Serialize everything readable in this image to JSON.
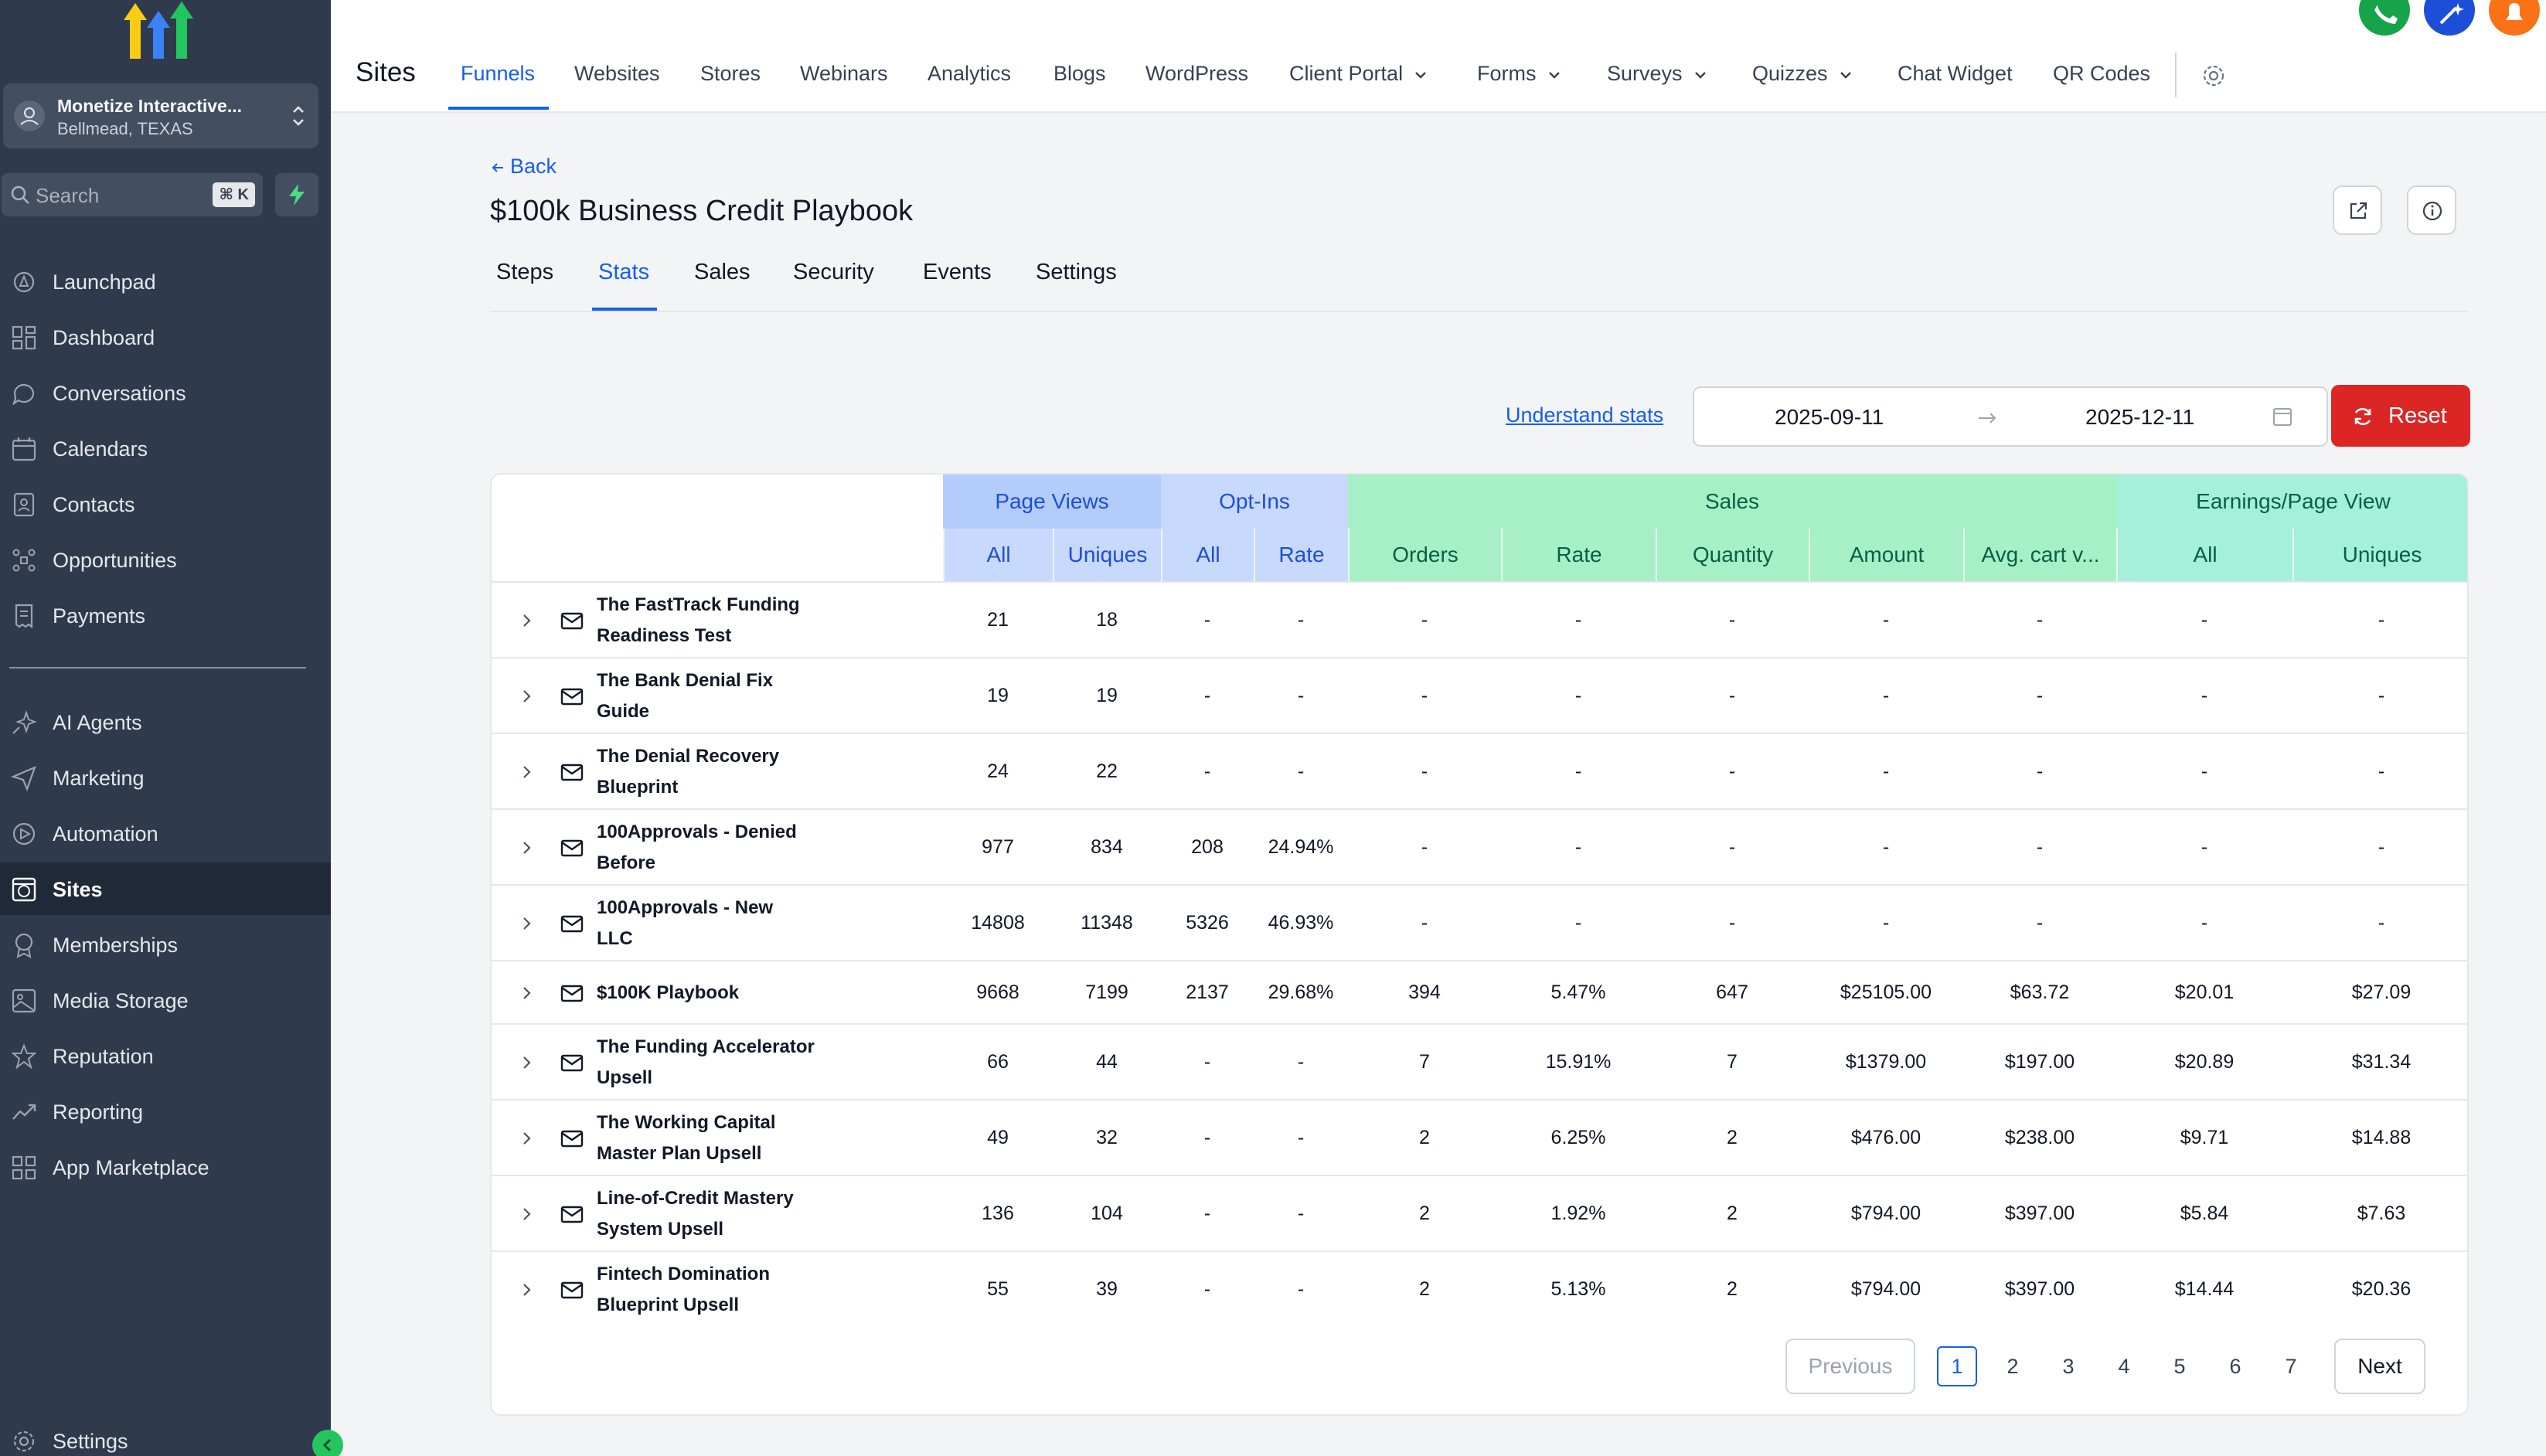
{
  "sidebar": {
    "account": {
      "name": "Monetize Interactive...",
      "location": "Bellmead, TEXAS"
    },
    "search": {
      "placeholder": "Search",
      "shortcut": "⌘ K"
    },
    "items": [
      {
        "label": "Launchpad",
        "icon": "rocket-icon"
      },
      {
        "label": "Dashboard",
        "icon": "grid-icon"
      },
      {
        "label": "Conversations",
        "icon": "chat-icon"
      },
      {
        "label": "Calendars",
        "icon": "calendar-icon"
      },
      {
        "label": "Contacts",
        "icon": "contacts-icon"
      },
      {
        "label": "Opportunities",
        "icon": "pipeline-icon"
      },
      {
        "label": "Payments",
        "icon": "receipt-icon"
      },
      {
        "label": "AI Agents",
        "icon": "sparkle-icon"
      },
      {
        "label": "Marketing",
        "icon": "send-icon"
      },
      {
        "label": "Automation",
        "icon": "automation-icon"
      },
      {
        "label": "Sites",
        "icon": "globe-icon"
      },
      {
        "label": "Memberships",
        "icon": "badge-icon"
      },
      {
        "label": "Media Storage",
        "icon": "image-icon"
      },
      {
        "label": "Reputation",
        "icon": "star-icon"
      },
      {
        "label": "Reporting",
        "icon": "trend-icon"
      },
      {
        "label": "App Marketplace",
        "icon": "apps-icon"
      }
    ],
    "settings_label": "Settings"
  },
  "topbar": {
    "title": "Sites",
    "tabs": [
      "Funnels",
      "Websites",
      "Stores",
      "Webinars",
      "Analytics",
      "Blogs",
      "WordPress",
      "Client Portal",
      "Forms",
      "Surveys",
      "Quizzes",
      "Chat Widget",
      "QR Codes"
    ]
  },
  "page": {
    "back_label": "Back",
    "title": "$100k Business Credit Playbook",
    "tabs": [
      "Steps",
      "Stats",
      "Sales",
      "Security",
      "Events",
      "Settings"
    ]
  },
  "filters": {
    "understand_label": "Understand stats",
    "start_date": "2025-09-11",
    "end_date": "2025-12-11",
    "reset_label": "Reset"
  },
  "table": {
    "groups": [
      "Page Views",
      "Opt-Ins",
      "Sales",
      "Earnings/Page View"
    ],
    "columns": [
      "All",
      "Uniques",
      "All",
      "Rate",
      "Orders",
      "Rate",
      "Quantity",
      "Amount",
      "Avg. cart v...",
      "All",
      "Uniques"
    ],
    "rows": [
      {
        "line1": "The FastTrack Funding",
        "line2": "Readiness Test",
        "values": [
          "21",
          "18",
          "-",
          "-",
          "-",
          "-",
          "-",
          "-",
          "-",
          "-",
          "-"
        ]
      },
      {
        "line1": "The Bank Denial Fix",
        "line2": "Guide",
        "values": [
          "19",
          "19",
          "-",
          "-",
          "-",
          "-",
          "-",
          "-",
          "-",
          "-",
          "-"
        ]
      },
      {
        "line1": "The Denial Recovery",
        "line2": "Blueprint",
        "values": [
          "24",
          "22",
          "-",
          "-",
          "-",
          "-",
          "-",
          "-",
          "-",
          "-",
          "-"
        ]
      },
      {
        "line1": "100Approvals - Denied",
        "line2": "Before",
        "values": [
          "977",
          "834",
          "208",
          "24.94%",
          "-",
          "-",
          "-",
          "-",
          "-",
          "-",
          "-"
        ]
      },
      {
        "line1": "100Approvals - New",
        "line2": "LLC",
        "values": [
          "14808",
          "11348",
          "5326",
          "46.93%",
          "-",
          "-",
          "-",
          "-",
          "-",
          "-",
          "-"
        ]
      },
      {
        "line1": "$100K Playbook",
        "line2": "",
        "values": [
          "9668",
          "7199",
          "2137",
          "29.68%",
          "394",
          "5.47%",
          "647",
          "$25105.00",
          "$63.72",
          "$20.01",
          "$27.09"
        ]
      },
      {
        "line1": "The Funding Accelerator",
        "line2": "Upsell",
        "values": [
          "66",
          "44",
          "-",
          "-",
          "7",
          "15.91%",
          "7",
          "$1379.00",
          "$197.00",
          "$20.89",
          "$31.34"
        ]
      },
      {
        "line1": "The Working Capital",
        "line2": "Master Plan Upsell",
        "values": [
          "49",
          "32",
          "-",
          "-",
          "2",
          "6.25%",
          "2",
          "$476.00",
          "$238.00",
          "$9.71",
          "$14.88"
        ]
      },
      {
        "line1": "Line-of-Credit Mastery",
        "line2": "System Upsell",
        "values": [
          "136",
          "104",
          "-",
          "-",
          "2",
          "1.92%",
          "2",
          "$794.00",
          "$397.00",
          "$5.84",
          "$7.63"
        ]
      },
      {
        "line1": "Fintech Domination",
        "line2": "Blueprint Upsell",
        "values": [
          "55",
          "39",
          "-",
          "-",
          "2",
          "5.13%",
          "2",
          "$794.00",
          "$397.00",
          "$14.44",
          "$20.36"
        ]
      }
    ]
  },
  "pagination": {
    "previous_label": "Previous",
    "next_label": "Next",
    "pages": [
      "1",
      "2",
      "3",
      "4",
      "5",
      "6",
      "7"
    ],
    "current": "1"
  },
  "colors": {
    "accent": "#155eef",
    "danger": "#dc2626",
    "sidebar": "#2f3a4c"
  }
}
